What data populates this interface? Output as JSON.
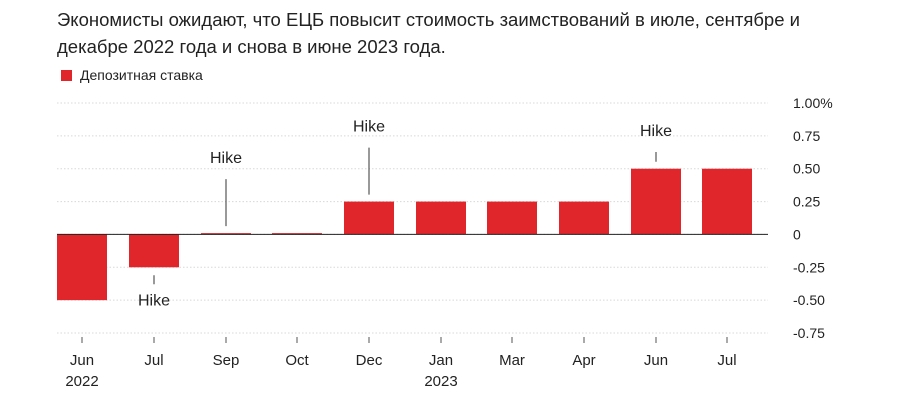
{
  "title": "Экономисты ожидают, что ЕЦБ повысит стоимость заимствований в июле, сентябре и декабре 2022 года и снова в июне 2023 года.",
  "legend": {
    "label": "Депозитная ставка",
    "color": "#e0262b"
  },
  "chart_data": {
    "type": "bar",
    "categories": [
      "Jun",
      "Jul",
      "Sep",
      "Oct",
      "Dec",
      "Jan",
      "Mar",
      "Apr",
      "Jun",
      "Jul"
    ],
    "year_labels": [
      "2022",
      "",
      "",
      "",
      "",
      "2023",
      "",
      "",
      "",
      ""
    ],
    "series": [
      {
        "name": "Депозитная ставка",
        "color": "#e0262b",
        "values": [
          -0.5,
          -0.25,
          0.01,
          0.01,
          0.25,
          0.25,
          0.25,
          0.25,
          0.5,
          0.5
        ]
      }
    ],
    "yticks": [
      1.0,
      0.75,
      0.5,
      0.25,
      0,
      -0.25,
      -0.5,
      -0.75
    ],
    "ytick_labels": [
      "1.00%",
      "0.75",
      "0.50",
      "0.25",
      "0",
      "-0.25",
      "-0.50",
      "-0.75"
    ],
    "ylim": [
      -0.75,
      1.0
    ],
    "annotations": [
      {
        "text": "Hike",
        "category_index": 1,
        "position": "below"
      },
      {
        "text": "Hike",
        "category_index": 2,
        "position": "above"
      },
      {
        "text": "Hike",
        "category_index": 4,
        "position": "above"
      },
      {
        "text": "Hike",
        "category_index": 8,
        "position": "above"
      }
    ],
    "grid": true,
    "legend_position": "top-left"
  }
}
